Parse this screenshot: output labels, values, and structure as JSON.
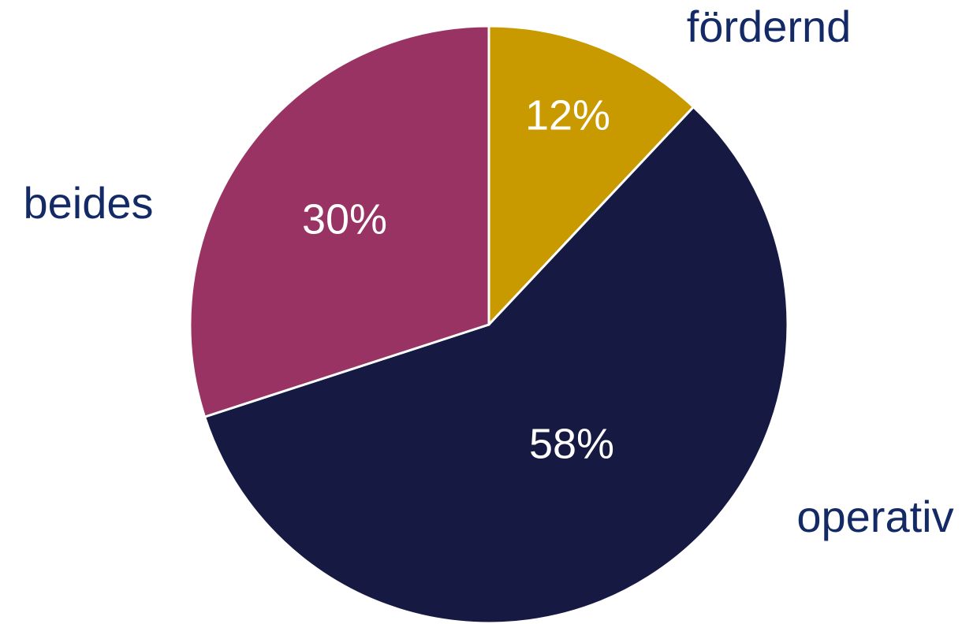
{
  "chart_data": {
    "type": "pie",
    "categories": [
      "fördernd",
      "operativ",
      "beides"
    ],
    "values": [
      12,
      58,
      30
    ],
    "value_labels": [
      "12%",
      "58%",
      "30%"
    ],
    "colors": [
      "#c99a00",
      "#161a42",
      "#983363"
    ]
  }
}
